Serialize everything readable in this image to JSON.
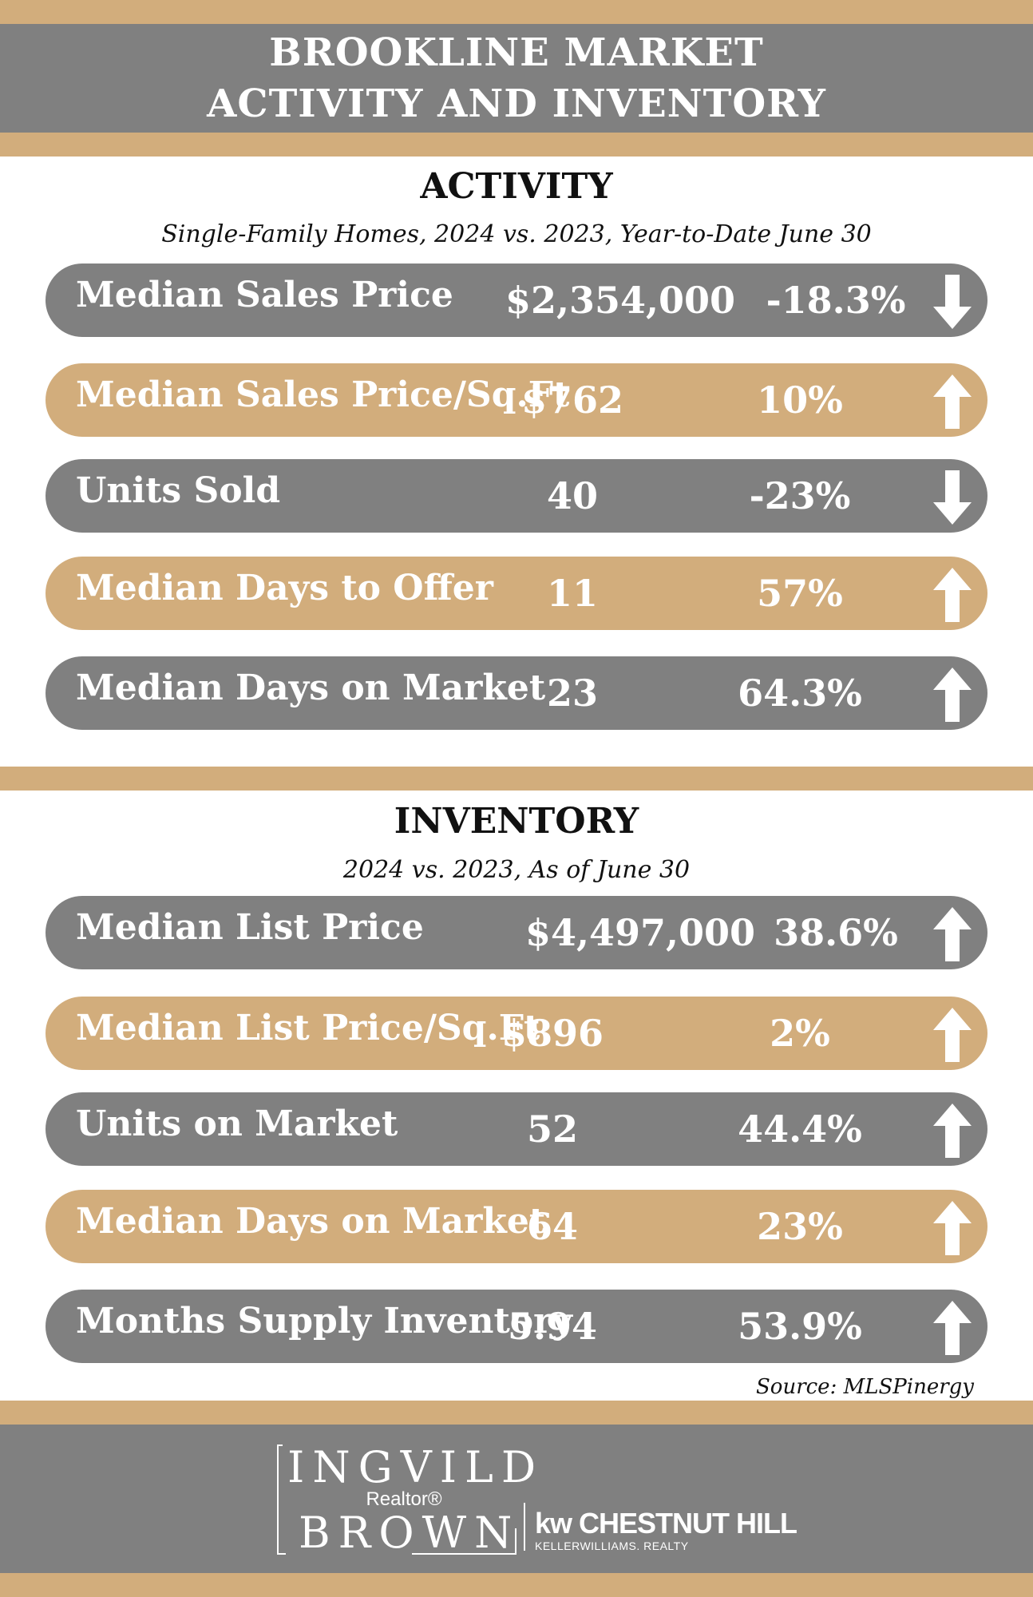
{
  "header": {
    "line1": "BROOKLINE MARKET",
    "line2": "ACTIVITY AND INVENTORY"
  },
  "activity": {
    "title": "ACTIVITY",
    "subtitle": "Single-Family Homes, 2024 vs. 2023, Year-to-Date June 30",
    "rows": [
      {
        "label": "Median Sales Price",
        "value": "$2,354,000",
        "change": "-18.3%",
        "direction": "down"
      },
      {
        "label": "Median Sales Price/Sq.Ft",
        "value": "$762",
        "change": "10%",
        "direction": "up"
      },
      {
        "label": "Units Sold",
        "value": "40",
        "change": "-23%",
        "direction": "down"
      },
      {
        "label": "Median Days to Offer",
        "value": "11",
        "change": "57%",
        "direction": "up"
      },
      {
        "label": "Median Days on Market",
        "value": "23",
        "change": "64.3%",
        "direction": "up"
      }
    ]
  },
  "inventory": {
    "title": "INVENTORY",
    "subtitle": "2024 vs. 2023, As of June 30",
    "rows": [
      {
        "label": "Median List Price",
        "value": "$4,497,000",
        "change": "38.6%",
        "direction": "up"
      },
      {
        "label": "Median List Price/Sq.Ft",
        "value": "$896",
        "change": "2%",
        "direction": "up"
      },
      {
        "label": "Units on Market",
        "value": "52",
        "change": "44.4%",
        "direction": "up"
      },
      {
        "label": "Median Days on Market",
        "value": "64",
        "change": "23%",
        "direction": "up"
      },
      {
        "label": "Months Supply Inventory",
        "value": "5.94",
        "change": "53.9%",
        "direction": "up"
      }
    ]
  },
  "source": "Source:  MLSPinergy",
  "footer": {
    "brand_top": "INGVILD",
    "brand_mid": "Realtor®",
    "brand_bottom": "BROWN",
    "kw_main": "kw CHESTNUT HILL",
    "kw_sub": "KELLERWILLIAMS. REALTY"
  },
  "colors": {
    "tan": "#d2ad7c",
    "gray": "#808080",
    "text_dark": "#111111"
  },
  "icons": {
    "up": "arrow-up-icon",
    "down": "arrow-down-icon"
  }
}
